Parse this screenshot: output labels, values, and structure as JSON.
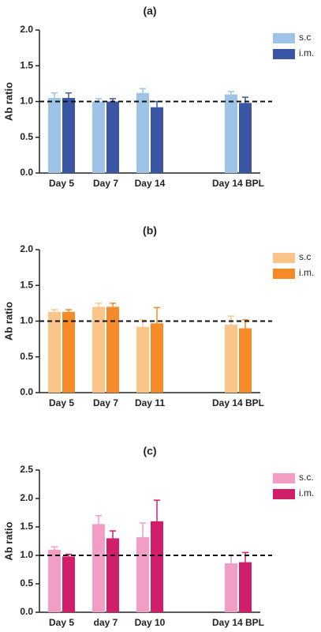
{
  "chart_data": [
    {
      "type": "bar",
      "title": "(a)",
      "y_label": "Ab ratio",
      "categories": [
        "Day 5",
        "Day 7",
        "Day 14",
        null,
        "Day 14 BPL"
      ],
      "series": [
        {
          "name": "s.c",
          "color": "#9dc3e6",
          "values": [
            1.05,
            1.0,
            1.12,
            null,
            1.1
          ],
          "errors": [
            0.07,
            0.04,
            0.06,
            null,
            0.04
          ]
        },
        {
          "name": "i.m.",
          "color": "#3a55a4",
          "values": [
            1.05,
            1.0,
            0.92,
            null,
            0.98
          ],
          "errors": [
            0.07,
            0.04,
            0.08,
            null,
            0.08
          ]
        }
      ],
      "reference_line": 1,
      "ylim": [
        0,
        2
      ],
      "yticks": [
        {
          "value": 0,
          "label": "0.0"
        },
        {
          "value": 0.5,
          "label": "0.5"
        },
        {
          "value": 1,
          "label": "1.0"
        },
        {
          "value": 1.5,
          "label": "1.5"
        },
        {
          "value": 2,
          "label": "2.0"
        }
      ],
      "legend": "top-right"
    },
    {
      "type": "bar",
      "title": "(b)",
      "y_label": "Ab ratio",
      "categories": [
        "Day 5",
        "Day 7",
        "Day 11",
        null,
        "Day 14 BPL"
      ],
      "series": [
        {
          "name": "s.c",
          "color": "#fbc58a",
          "values": [
            1.13,
            1.2,
            0.92,
            null,
            0.95
          ],
          "errors": [
            0.03,
            0.05,
            0.1,
            null,
            0.12
          ]
        },
        {
          "name": "i.m.",
          "color": "#f58a28",
          "values": [
            1.13,
            1.2,
            0.97,
            null,
            0.9
          ],
          "errors": [
            0.03,
            0.05,
            0.22,
            null,
            0.12
          ]
        }
      ],
      "reference_line": 1,
      "ylim": [
        0,
        2
      ],
      "yticks": [
        {
          "value": 0,
          "label": "0.0"
        },
        {
          "value": 0.5,
          "label": "0.5"
        },
        {
          "value": 1,
          "label": "1.0"
        },
        {
          "value": 1.5,
          "label": "1.5"
        },
        {
          "value": 2,
          "label": "2.0"
        }
      ],
      "legend": "top-right"
    },
    {
      "type": "bar",
      "title": "(c)",
      "y_label": "Ab ratio",
      "categories": [
        "Day 5",
        "day 7",
        "Day 10",
        null,
        "Day 14 BPL"
      ],
      "series": [
        {
          "name": "s.c.",
          "color": "#f29ec4",
          "values": [
            1.1,
            1.55,
            1.32,
            null,
            0.86
          ],
          "errors": [
            0.05,
            0.15,
            0.25,
            null,
            0.14
          ]
        },
        {
          "name": "i.m.",
          "color": "#d01e6b",
          "values": [
            0.98,
            1.3,
            1.6,
            null,
            0.88
          ],
          "errors": [
            0.04,
            0.13,
            0.37,
            null,
            0.17
          ]
        }
      ],
      "reference_line": 1,
      "ylim": [
        0,
        2.5
      ],
      "yticks": [
        {
          "value": 0,
          "label": "0.0"
        },
        {
          "value": 0.5,
          "label": "0.5"
        },
        {
          "value": 1,
          "label": "1.0"
        },
        {
          "value": 1.5,
          "label": "1.5"
        },
        {
          "value": 2,
          "label": "2.0"
        },
        {
          "value": 2.5,
          "label": "2.5"
        }
      ],
      "legend": "top-right"
    }
  ]
}
